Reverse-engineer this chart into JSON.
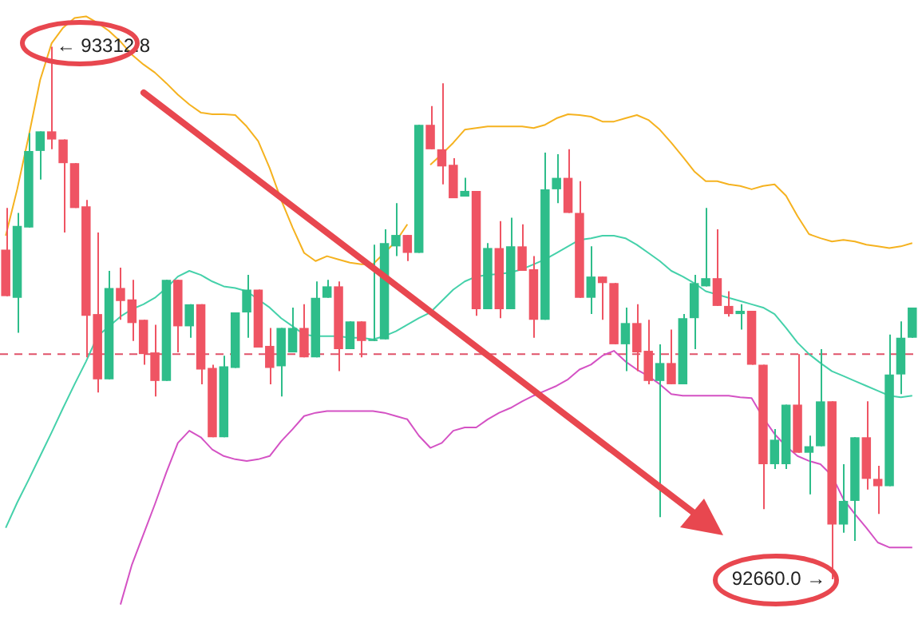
{
  "chart_data": {
    "type": "candlestick",
    "ylim": [
      92610,
      93370
    ],
    "tick_labels": false,
    "marker": "none",
    "categories": [
      null,
      null,
      null,
      null,
      null,
      null,
      null,
      null,
      null,
      null,
      null,
      null,
      null,
      null,
      null,
      null,
      null,
      null,
      null,
      null,
      null,
      null,
      null,
      null,
      null,
      null,
      null,
      null,
      null,
      null,
      null,
      null,
      null,
      null,
      null,
      null,
      null,
      null,
      null,
      null,
      null,
      null,
      null,
      null,
      null,
      null,
      null,
      null,
      null,
      null,
      null,
      null,
      null,
      null,
      null,
      null,
      null,
      null,
      null,
      null,
      null,
      null,
      null,
      null,
      null,
      null,
      null,
      null,
      null,
      null,
      null,
      null,
      null,
      null,
      null,
      null,
      null,
      null,
      null,
      null
    ],
    "ohlc": [
      [
        93064,
        93115,
        93007,
        93007
      ],
      [
        93005,
        93109,
        92962,
        93093
      ],
      [
        93091,
        93207,
        93091,
        93185
      ],
      [
        93185,
        93209,
        93150,
        93209
      ],
      [
        93209,
        93312.8,
        93187,
        93199
      ],
      [
        93199,
        93199,
        93085,
        93170
      ],
      [
        93170,
        93170,
        93115,
        93115
      ],
      [
        93117,
        93125,
        92932,
        92983
      ],
      [
        92985,
        93085,
        92889,
        92905
      ],
      [
        92905,
        93038,
        92905,
        93017
      ],
      [
        93017,
        93042,
        92978,
        93001
      ],
      [
        93003,
        93027,
        92952,
        92974
      ],
      [
        92978,
        92978,
        92923,
        92936
      ],
      [
        92938,
        92972,
        92884,
        92903
      ],
      [
        92903,
        93027,
        92903,
        93027
      ],
      [
        93027,
        93027,
        92938,
        92970
      ],
      [
        92970,
        92997,
        92956,
        92997
      ],
      [
        92997,
        92997,
        92899,
        92917
      ],
      [
        92919,
        92923,
        92834,
        92834
      ],
      [
        92834,
        92934,
        92834,
        92921
      ],
      [
        92919,
        92987,
        92919,
        92987
      ],
      [
        92987,
        93033,
        92956,
        93015
      ],
      [
        93015,
        93015,
        92944,
        92944
      ],
      [
        92946,
        92968,
        92899,
        92919
      ],
      [
        92921,
        92968,
        92884,
        92968
      ],
      [
        92938,
        92993,
        92938,
        92968
      ],
      [
        92968,
        92997,
        92932,
        92932
      ],
      [
        92932,
        93025,
        92932,
        93005
      ],
      [
        93005,
        93027,
        93005,
        93019
      ],
      [
        93019,
        93025,
        92915,
        92942
      ],
      [
        92942,
        92976,
        92942,
        92976
      ],
      [
        92976,
        92976,
        92932,
        92952
      ],
      [
        92952,
        93070,
        92952,
        92954
      ],
      [
        92954,
        93089,
        92954,
        93072
      ],
      [
        93068,
        93121,
        93056,
        93082
      ],
      [
        93082,
        93082,
        93050,
        93060
      ],
      [
        93060,
        93217,
        93060,
        93217
      ],
      [
        93217,
        93240,
        93187,
        93187
      ],
      [
        93187,
        93268,
        93144,
        93166
      ],
      [
        93168,
        93176,
        93127,
        93127
      ],
      [
        93129,
        93152,
        93129,
        93136
      ],
      [
        93136,
        93136,
        92983,
        92991
      ],
      [
        92991,
        93072,
        92991,
        93066
      ],
      [
        93066,
        93099,
        92980,
        92991
      ],
      [
        92991,
        93103,
        92991,
        93068
      ],
      [
        93068,
        93095,
        93038,
        93038
      ],
      [
        93040,
        93056,
        92956,
        92978
      ],
      [
        92978,
        93183,
        92978,
        93138
      ],
      [
        93138,
        93181,
        93121,
        93152
      ],
      [
        93152,
        93187,
        93109,
        93109
      ],
      [
        93109,
        93148,
        93005,
        93005
      ],
      [
        93005,
        93068,
        92985,
        93031
      ],
      [
        93031,
        93031,
        92978,
        93023
      ],
      [
        93023,
        93023,
        92948,
        92948
      ],
      [
        92948,
        92993,
        92915,
        92974
      ],
      [
        92974,
        92997,
        92915,
        92938
      ],
      [
        92940,
        92978,
        92899,
        92903
      ],
      [
        92903,
        92948,
        92736,
        92925
      ],
      [
        92925,
        92966,
        92899,
        92899
      ],
      [
        92899,
        92985,
        92899,
        92980
      ],
      [
        92980,
        93033,
        92942,
        93023
      ],
      [
        93019,
        93115,
        93019,
        93029
      ],
      [
        93029,
        93089,
        92995,
        92995
      ],
      [
        92995,
        93013,
        92982,
        92985
      ],
      [
        92985,
        92997,
        92966,
        92989
      ],
      [
        92989,
        92989,
        92923,
        92923
      ],
      [
        92923,
        92923,
        92746,
        92801
      ],
      [
        92801,
        92844,
        92795,
        92831
      ],
      [
        92801,
        92874,
        92795,
        92874
      ],
      [
        92874,
        92936,
        92815,
        92815
      ],
      [
        92815,
        92836,
        92764,
        92823
      ],
      [
        92823,
        92942,
        92823,
        92878
      ],
      [
        92878,
        92878,
        92660.0,
        92727
      ],
      [
        92727,
        92801,
        92717,
        92756
      ],
      [
        92756,
        92834,
        92707,
        92834
      ],
      [
        92834,
        92878,
        92770,
        92783
      ],
      [
        92783,
        92799,
        92740,
        92774
      ],
      [
        92774,
        92960,
        92774,
        92911
      ],
      [
        92911,
        92976,
        92887,
        92956
      ],
      [
        92956,
        92993,
        92956,
        92993
      ]
    ],
    "colors": [
      "#ef5463",
      "#2ebd8a",
      "#2ebd8a",
      "#2ebd8a",
      "#ef5463",
      "#ef5463",
      "#ef5463",
      "#ef5463",
      "#ef5463",
      "#2ebd8a",
      "#ef5463",
      "#ef5463",
      "#ef5463",
      "#ef5463",
      "#2ebd8a",
      "#ef5463",
      "#2ebd8a",
      "#ef5463",
      "#ef5463",
      "#2ebd8a",
      "#2ebd8a",
      "#2ebd8a",
      "#ef5463",
      "#ef5463",
      "#2ebd8a",
      "#2ebd8a",
      "#ef5463",
      "#2ebd8a",
      "#2ebd8a",
      "#ef5463",
      "#2ebd8a",
      "#ef5463",
      "#2ebd8a",
      "#2ebd8a",
      "#2ebd8a",
      "#ef5463",
      "#2ebd8a",
      "#ef5463",
      "#ef5463",
      "#ef5463",
      "#2ebd8a",
      "#ef5463",
      "#2ebd8a",
      "#ef5463",
      "#2ebd8a",
      "#ef5463",
      "#ef5463",
      "#2ebd8a",
      "#2ebd8a",
      "#ef5463",
      "#ef5463",
      "#2ebd8a",
      "#ef5463",
      "#ef5463",
      "#2ebd8a",
      "#ef5463",
      "#ef5463",
      "#2ebd8a",
      "#ef5463",
      "#2ebd8a",
      "#2ebd8a",
      "#2ebd8a",
      "#ef5463",
      "#ef5463",
      "#2ebd8a",
      "#ef5463",
      "#ef5463",
      "#2ebd8a",
      "#2ebd8a",
      "#ef5463",
      "#2ebd8a",
      "#2ebd8a",
      "#ef5463",
      "#2ebd8a",
      "#2ebd8a",
      "#ef5463",
      "#ef5463",
      "#2ebd8a",
      "#2ebd8a",
      "#2ebd8a"
    ],
    "series": [
      {
        "type": "line",
        "color": "#f5b21f",
        "values": [
          93081,
          93138,
          93203,
          93272,
          93317,
          93336,
          93348,
          93350,
          93342,
          93332,
          93319,
          93303,
          93291,
          93281,
          93268,
          93254,
          93242,
          93232,
          93230,
          93230,
          93229,
          93215,
          93197,
          93164,
          93125,
          93091,
          93060,
          93050,
          93056,
          93052,
          93048,
          93046,
          93046,
          93060,
          93074,
          93095,
          null,
          93168,
          93181,
          93195,
          93211,
          93213,
          93215,
          93215,
          93215,
          93215,
          93213,
          93217,
          93225,
          93230,
          93229,
          93227,
          93221,
          93221,
          93225,
          93229,
          93223,
          93211,
          93195,
          93178,
          93160,
          93148,
          93148,
          93144,
          93142,
          93138,
          93142,
          93144,
          93130,
          93105,
          93083,
          93078,
          93074,
          93076,
          93074,
          93070,
          93068,
          93066,
          93068,
          93072
        ]
      },
      {
        "type": "line",
        "color": "#45d1aa",
        "values": [
          92723,
          92754,
          92782,
          92811,
          92840,
          92870,
          92899,
          92927,
          92958,
          92970,
          92982,
          92991,
          92997,
          93005,
          93017,
          93031,
          93038,
          93033,
          93025,
          93019,
          93017,
          93013,
          93003,
          92993,
          92980,
          92970,
          92960,
          92958,
          92958,
          92958,
          92956,
          92956,
          92954,
          92958,
          92964,
          92972,
          92980,
          92987,
          93001,
          93015,
          93025,
          93031,
          93033,
          93034,
          93036,
          93040,
          93046,
          93052,
          93060,
          93068,
          93076,
          93078,
          93081,
          93081,
          93078,
          93070,
          93060,
          93050,
          93038,
          93031,
          93023,
          93013,
          93009,
          93005,
          93001,
          92997,
          92993,
          92985,
          92968,
          92950,
          92936,
          92925,
          92915,
          92909,
          92903,
          92897,
          92891,
          92885,
          92883,
          92885
        ]
      },
      {
        "type": "line",
        "color": "#d452c4",
        "values": [
          null,
          null,
          null,
          null,
          null,
          null,
          null,
          null,
          null,
          null,
          92629,
          92678,
          92715,
          92752,
          92791,
          92827,
          92842,
          92834,
          92819,
          92811,
          92807,
          92805,
          92807,
          92811,
          92829,
          92844,
          92860,
          92864,
          92866,
          92866,
          92866,
          92866,
          92866,
          92864,
          92860,
          92856,
          92836,
          92821,
          92827,
          92842,
          92846,
          92846,
          92856,
          92864,
          92870,
          92878,
          92885,
          92891,
          92897,
          92905,
          92917,
          92923,
          92934,
          92940,
          92927,
          92917,
          92909,
          92899,
          92887,
          92885,
          92885,
          92885,
          92885,
          92885,
          92883,
          92882,
          92858,
          92838,
          92823,
          92811,
          92805,
          92801,
          92787,
          92758,
          92740,
          92723,
          92705,
          92699,
          92699,
          92699
        ]
      }
    ],
    "ref_lines": [
      {
        "axis": "y",
        "value": 92936,
        "color": "#e0536a",
        "line_style": "dashed"
      }
    ],
    "annotations": [
      "← 93312.8",
      "92660.0 →"
    ]
  }
}
